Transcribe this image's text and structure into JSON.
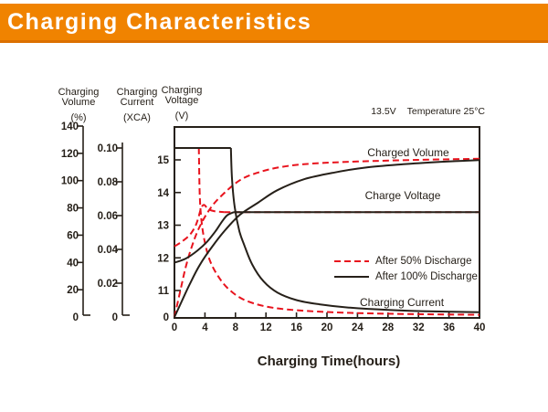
{
  "header": {
    "title": "Charging Characteristics"
  },
  "colors": {
    "header_bg": "#F08300",
    "header_border": "#DC7000",
    "header_text": "#FFFFFF",
    "red": "#E8131D",
    "dark": "#262019"
  },
  "chart_data": {
    "type": "line",
    "title": "Charging Characteristics",
    "xlabel": "Charging Time(hours)",
    "x_axis": {
      "range": [
        0,
        40
      ],
      "ticks": [
        "0",
        "4",
        "8",
        "12",
        "16",
        "20",
        "24",
        "28",
        "32",
        "36",
        "40"
      ]
    },
    "axes": {
      "volume": {
        "title_lines": [
          "Charging",
          "Volume"
        ],
        "unit": "(%)",
        "range": [
          0,
          140
        ],
        "ticks": [
          "0",
          "20",
          "40",
          "60",
          "80",
          "100",
          "120",
          "140"
        ]
      },
      "current": {
        "title_lines": [
          "Charging",
          "Current"
        ],
        "unit": "(XCA)",
        "range": [
          0,
          0.1
        ],
        "ticks": [
          "0",
          "0.02",
          "0.04",
          "0.06",
          "0.08",
          "0.10"
        ]
      },
      "voltage": {
        "title_lines": [
          "Charging",
          "Voltage"
        ],
        "unit": "(V)",
        "range_shown": [
          11,
          15
        ],
        "has_axis_break": true,
        "ticks": [
          "0",
          "11",
          "12",
          "13",
          "14",
          "15"
        ]
      }
    },
    "annotation": {
      "set_voltage": "13.5V",
      "temperature": "Temperature 25°C"
    },
    "curve_labels": {
      "volume": "Charged Volume",
      "voltage": "Charge Voltage",
      "current": "Charging Current"
    },
    "legend": [
      {
        "label": "After 50% Discharge",
        "style": "dashed",
        "color": "red"
      },
      {
        "label": "After 100% Discharge",
        "style": "solid",
        "color": "dark"
      }
    ],
    "series": [
      {
        "name": "charged-volume-after-50-discharge",
        "quantity": "volume",
        "condition": "After 50% Discharge",
        "color": "red",
        "dashed": true,
        "segments": [
          {
            "smooth": true,
            "points": [
              [
                0,
                0
              ],
              [
                0.8,
                20
              ],
              [
                1.5,
                37
              ],
              [
                2.3,
                52
              ],
              [
                3.2,
                65
              ],
              [
                4.5,
                78
              ],
              [
                6,
                88
              ],
              [
                8.5,
                100
              ],
              [
                11,
                106
              ],
              [
                14,
                110
              ],
              [
                18,
                112.5
              ],
              [
                24,
                114
              ],
              [
                32,
                115.2
              ],
              [
                40,
                116
              ]
            ]
          }
        ]
      },
      {
        "name": "charge-voltage-after-50-discharge",
        "quantity": "voltage",
        "condition": "After 50% Discharge",
        "color": "red",
        "dashed": true,
        "segments": [
          {
            "smooth": true,
            "points": [
              [
                0,
                12.35
              ],
              [
                1,
                12.5
              ],
              [
                2,
                12.7
              ],
              [
                2.7,
                12.95
              ],
              [
                3.1,
                13.2
              ],
              [
                3.5,
                13.52
              ],
              [
                3.9,
                13.62
              ],
              [
                4.4,
                13.5
              ],
              [
                5.2,
                13.43
              ],
              [
                6.5,
                13.4
              ]
            ]
          },
          {
            "smooth": false,
            "points": [
              [
                6.5,
                13.4
              ],
              [
                40,
                13.4
              ]
            ]
          }
        ]
      },
      {
        "name": "charging-current-after-50-discharge",
        "quantity": "current",
        "condition": "After 50% Discharge",
        "color": "red",
        "dashed": true,
        "segments": [
          {
            "smooth": false,
            "points": [
              [
                0,
                0.1
              ],
              [
                3.2,
                0.1
              ]
            ]
          },
          {
            "smooth": true,
            "points": [
              [
                3.2,
                0.1
              ],
              [
                3.32,
                0.072
              ],
              [
                3.55,
                0.057
              ],
              [
                3.95,
                0.045
              ],
              [
                4.6,
                0.034
              ],
              [
                5.6,
                0.025
              ],
              [
                7,
                0.017
              ],
              [
                9,
                0.0105
              ],
              [
                12,
                0.0062
              ],
              [
                16,
                0.004
              ],
              [
                22,
                0.0026
              ],
              [
                30,
                0.0018
              ],
              [
                40,
                0.0013
              ]
            ]
          }
        ]
      },
      {
        "name": "charged-volume-after-100-discharge",
        "quantity": "volume",
        "condition": "After 100% Discharge",
        "color": "dark",
        "dashed": false,
        "segments": [
          {
            "smooth": true,
            "points": [
              [
                0,
                0
              ],
              [
                1,
                12
              ],
              [
                2,
                24
              ],
              [
                3.3,
                38
              ],
              [
                5,
                52
              ],
              [
                6.7,
                64
              ],
              [
                8.6,
                75
              ],
              [
                11,
                84
              ],
              [
                13.5,
                93
              ],
              [
                17,
                101
              ],
              [
                21,
                106
              ],
              [
                25,
                109.5
              ],
              [
                30,
                112
              ],
              [
                35,
                113.8
              ],
              [
                40,
                115
              ]
            ]
          }
        ]
      },
      {
        "name": "charge-voltage-after-100-discharge",
        "quantity": "voltage",
        "condition": "After 100% Discharge",
        "color": "dark",
        "dashed": false,
        "segments": [
          {
            "smooth": true,
            "points": [
              [
                0,
                11.85
              ],
              [
                1.5,
                11.98
              ],
              [
                3,
                12.22
              ],
              [
                4.3,
                12.5
              ],
              [
                5.4,
                12.82
              ],
              [
                6.2,
                13.1
              ],
              [
                6.9,
                13.3
              ],
              [
                7.8,
                13.4
              ]
            ]
          },
          {
            "smooth": false,
            "points": [
              [
                7.8,
                13.4
              ],
              [
                40,
                13.4
              ]
            ]
          }
        ]
      },
      {
        "name": "charging-current-after-100-discharge",
        "quantity": "current",
        "condition": "After 100% Discharge",
        "color": "dark",
        "dashed": false,
        "segments": [
          {
            "smooth": false,
            "points": [
              [
                0,
                0.1
              ],
              [
                7.4,
                0.1
              ]
            ]
          },
          {
            "smooth": true,
            "points": [
              [
                7.4,
                0.1
              ],
              [
                7.55,
                0.082
              ],
              [
                7.9,
                0.065
              ],
              [
                8.5,
                0.051
              ],
              [
                9.2,
                0.042
              ],
              [
                10.2,
                0.031
              ],
              [
                11.7,
                0.021
              ],
              [
                13.5,
                0.0145
              ],
              [
                16,
                0.01
              ],
              [
                19,
                0.0075
              ],
              [
                23,
                0.0055
              ],
              [
                28,
                0.0042
              ],
              [
                34,
                0.0033
              ],
              [
                40,
                0.0028
              ]
            ]
          }
        ]
      }
    ]
  }
}
